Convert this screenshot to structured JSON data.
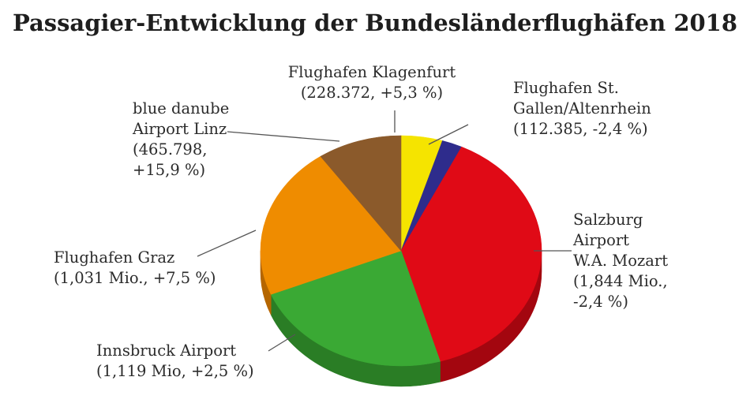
{
  "chart_data": {
    "type": "pie",
    "title": "Passagier-Entwicklung der Bundesländerflughäfen 2018",
    "slices": [
      {
        "name": "Flughafen Klagenfurt",
        "value": 228372,
        "lines": [
          "Flughafen Klagenfurt",
          "(228.372, +5,3 %)"
        ],
        "color": "#f5e400",
        "side": "#c8b900"
      },
      {
        "name": "Flughafen St. Gallen/Altenrhein",
        "value": 112385,
        "lines": [
          "Flughafen St.",
          "Gallen/Altenrhein",
          "(112.385, -2,4 %)"
        ],
        "color": "#2e2c8c",
        "side": "#1f1d63"
      },
      {
        "name": "Salzburg Airport W.A. Mozart",
        "value": 1844000,
        "lines": [
          "Salzburg",
          "Airport",
          "W.A. Mozart",
          "(1,844 Mio.,",
          "-2,4 %)"
        ],
        "color": "#e00a16",
        "side": "#a3060f"
      },
      {
        "name": "Innsbruck Airport",
        "value": 1119000,
        "lines": [
          "Innsbruck Airport",
          "(1,119 Mio, +2,5 %)"
        ],
        "color": "#3aa934",
        "side": "#2a7d25"
      },
      {
        "name": "Flughafen Graz",
        "value": 1031000,
        "lines": [
          "Flughafen Graz",
          "(1,031 Mio., +7,5 %)"
        ],
        "color": "#ef8c00",
        "side": "#b56600"
      },
      {
        "name": "blue danube Airport Linz",
        "value": 465798,
        "lines": [
          "blue danube",
          "Airport Linz",
          "(465.798,",
          "+15,9 %)"
        ],
        "color": "#8b5a2b",
        "side": "#67411e"
      }
    ],
    "start_angle_deg": -90,
    "direction": "clockwise",
    "view": "3d-tilted",
    "legend": "none"
  }
}
